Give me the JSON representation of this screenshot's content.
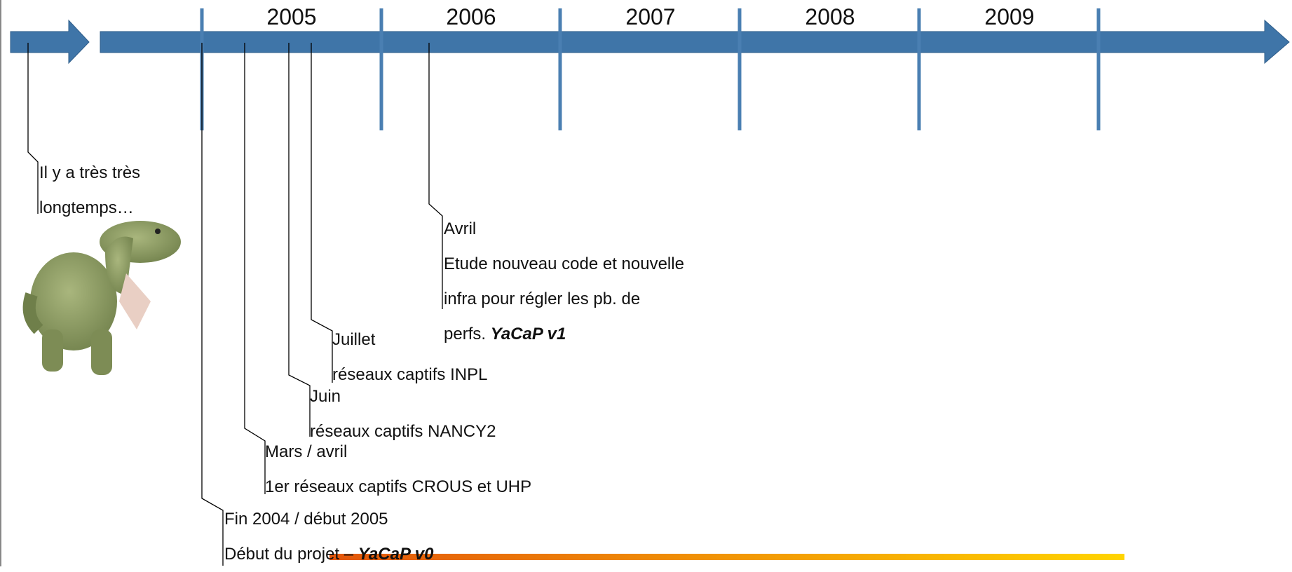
{
  "timeline": {
    "years": [
      "2005",
      "2006",
      "2007",
      "2008",
      "2009"
    ],
    "events": [
      {
        "title": "Il y a très très longtemps…"
      },
      {
        "title": "Fin 2004 / début 2005",
        "description": "Début du projet – ",
        "highlight": "YaCaP v0"
      },
      {
        "title": "Mars / avril",
        "description": "1er réseaux captifs CROUS et UHP"
      },
      {
        "title": "Juin",
        "description": "réseaux captifs NANCY2"
      },
      {
        "title": "Juillet",
        "description": "réseaux captifs INPL"
      },
      {
        "title": "Avril",
        "description": "Etude nouveau code et nouvelle infra pour régler les pb. de perfs. ",
        "highlight": "YaCaP v1"
      }
    ]
  }
}
